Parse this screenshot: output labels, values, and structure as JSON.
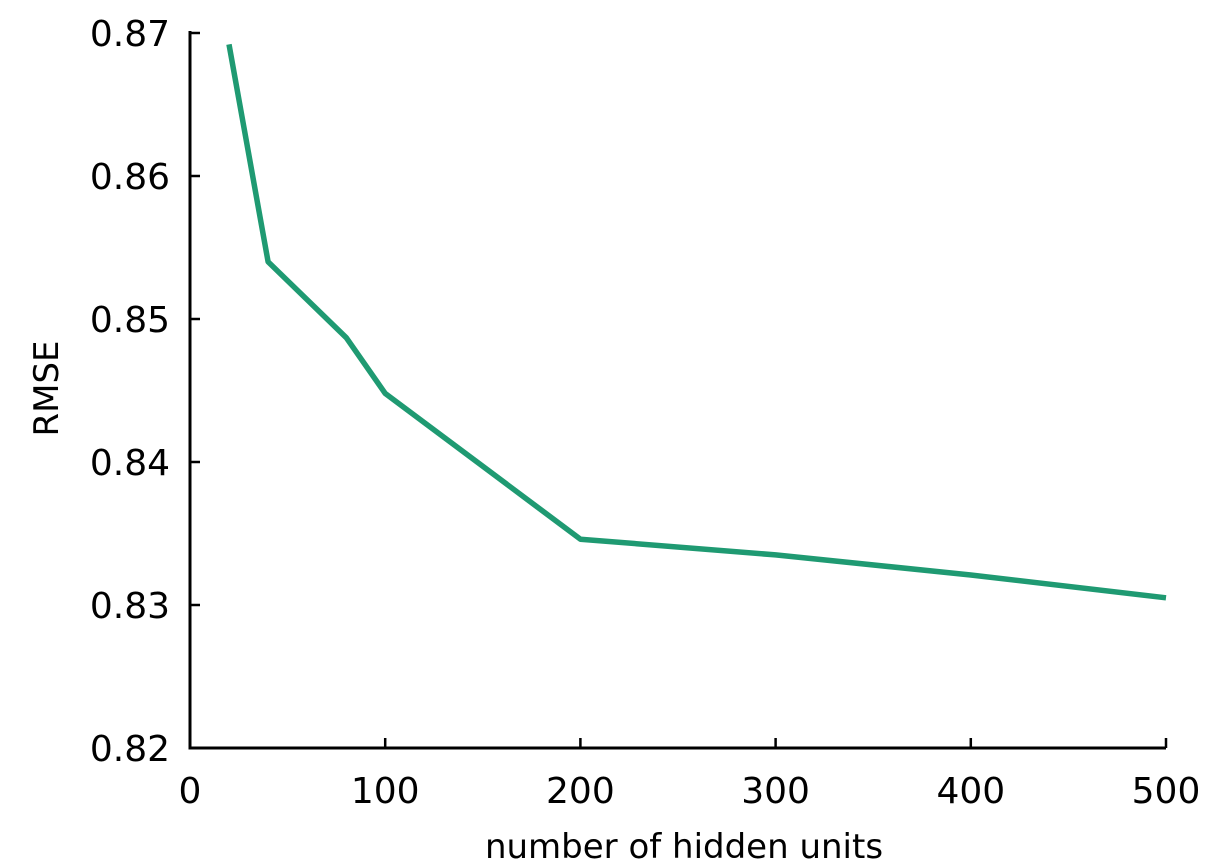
{
  "chart_data": {
    "type": "line",
    "title": "",
    "xlabel": "number of hidden units",
    "ylabel": "RMSE",
    "xlim": [
      0,
      500
    ],
    "ylim": [
      0.82,
      0.87
    ],
    "xticks": [
      0,
      100,
      200,
      300,
      400,
      500
    ],
    "xtick_labels": [
      "0",
      "100",
      "200",
      "300",
      "400",
      "500"
    ],
    "yticks": [
      0.82,
      0.83,
      0.84,
      0.85,
      0.86,
      0.87
    ],
    "ytick_labels": [
      "0.82",
      "0.83",
      "0.84",
      "0.85",
      "0.86",
      "0.87"
    ],
    "grid": false,
    "legend": false,
    "series": [
      {
        "color": "#1f9a72",
        "x": [
          20,
          40,
          80,
          100,
          200,
          300,
          400,
          500
        ],
        "y": [
          0.8692,
          0.854,
          0.8487,
          0.8448,
          0.8346,
          0.8335,
          0.8321,
          0.8305
        ]
      }
    ]
  }
}
